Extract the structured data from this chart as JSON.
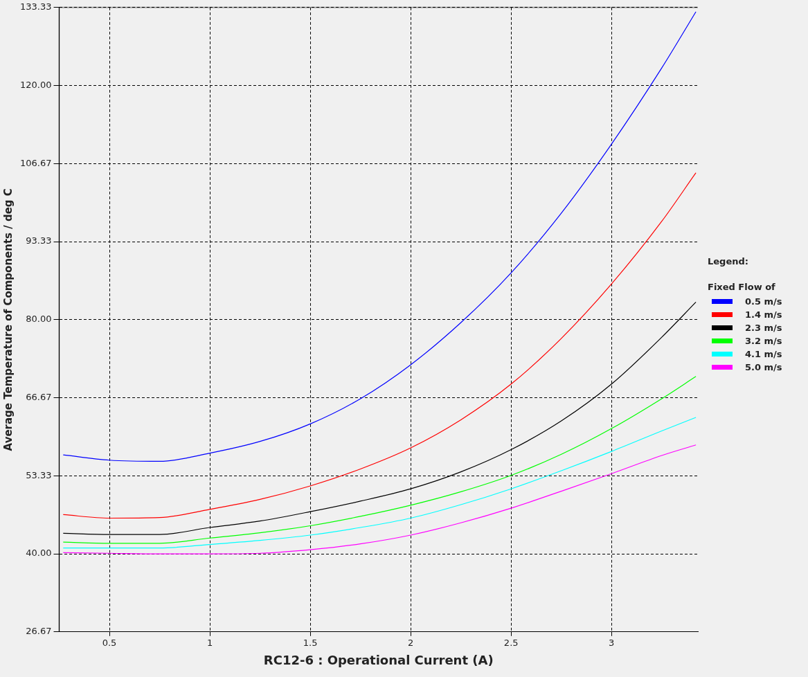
{
  "chart_data": {
    "type": "line",
    "xlabel": "RC12-6 : Operational Current (A)",
    "ylabel": "Average Temperature of Components / deg C",
    "legend_title": "Fixed Flow of",
    "annotations": [
      "Legend:"
    ],
    "x": [
      0.27,
      0.5,
      0.75,
      1,
      1.25,
      1.5,
      1.75,
      2,
      2.25,
      2.5,
      2.75,
      3,
      3.25,
      3.42
    ],
    "series": [
      {
        "name": "0.5 m/s",
        "color": "#0000ff",
        "values": [
          56.9,
          56.0,
          55.8,
          57.2,
          59.2,
          62.2,
          66.5,
          72.3,
          79.5,
          88.0,
          98.2,
          110.0,
          123.0,
          132.6
        ]
      },
      {
        "name": "1.4 m/s",
        "color": "#ff0000",
        "values": [
          46.7,
          46.1,
          46.2,
          47.6,
          49.3,
          51.6,
          54.5,
          58.1,
          62.9,
          69.0,
          76.8,
          86.1,
          96.8,
          105.1
        ]
      },
      {
        "name": "2.3 m/s",
        "color": "#000000",
        "values": [
          43.5,
          43.3,
          43.3,
          44.5,
          45.6,
          47.2,
          49.0,
          51.1,
          54.0,
          57.8,
          62.7,
          69.0,
          77.0,
          83.0
        ]
      },
      {
        "name": "3.2 m/s",
        "color": "#00ff00",
        "values": [
          42.0,
          41.8,
          41.8,
          42.7,
          43.6,
          44.8,
          46.4,
          48.3,
          50.6,
          53.4,
          57.0,
          61.4,
          66.5,
          70.3
        ]
      },
      {
        "name": "4.1 m/s",
        "color": "#00ffff",
        "values": [
          41.0,
          41.0,
          41.0,
          41.6,
          42.3,
          43.2,
          44.5,
          46.1,
          48.4,
          51.1,
          54.2,
          57.5,
          61.0,
          63.3
        ]
      },
      {
        "name": "5.0 m/s",
        "color": "#ff00ff",
        "values": [
          40.2,
          40.1,
          40.0,
          40.0,
          40.1,
          40.7,
          41.7,
          43.2,
          45.3,
          47.8,
          50.7,
          53.7,
          56.8,
          58.6
        ]
      }
    ],
    "xlim": [
      0.25,
      3.43
    ],
    "xticks": [
      0.5,
      1,
      1.5,
      2,
      2.5,
      3
    ],
    "ylim": [
      26.67,
      133.33
    ],
    "yticks": [
      {
        "value": 26.67,
        "label": "26.67"
      },
      {
        "value": 40,
        "label": "40.00"
      },
      {
        "value": 53.33,
        "label": "53.33"
      },
      {
        "value": 66.67,
        "label": "66.67"
      },
      {
        "value": 80,
        "label": "80.00"
      },
      {
        "value": 93.33,
        "label": "93.33"
      },
      {
        "value": 106.67,
        "label": "106.67"
      },
      {
        "value": 120,
        "label": "120.00"
      },
      {
        "value": 133.33,
        "label": "133.33"
      }
    ],
    "grid": true,
    "legend": "right",
    "marker": "none",
    "line_style": "solid"
  }
}
